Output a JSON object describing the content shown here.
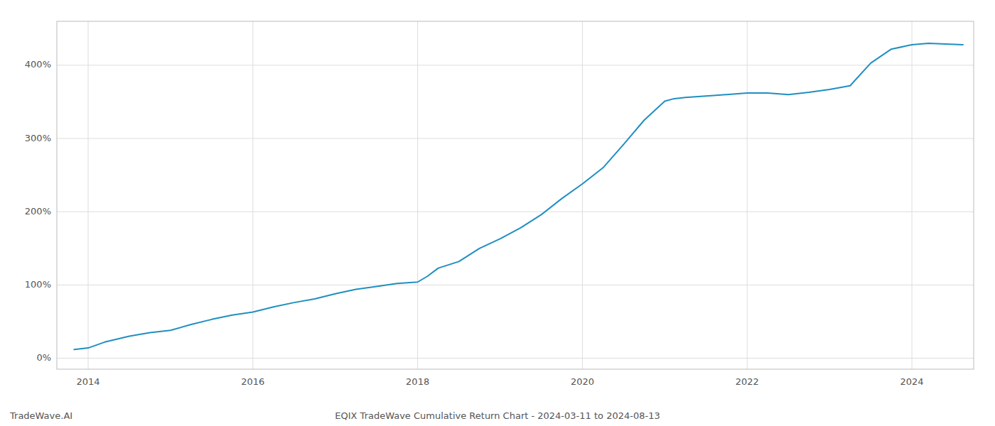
{
  "chart_data": {
    "type": "line",
    "title": "EQIX TradeWave Cumulative Return Chart - 2024-03-11 to 2024-08-13",
    "annotations": [
      "TradeWave.AI"
    ],
    "color": "#1f8fc1",
    "grid": true,
    "xlim": [
      2013.62,
      2024.75
    ],
    "ylim": [
      -15,
      460
    ],
    "xticks": [
      2014,
      2016,
      2018,
      2020,
      2022,
      2024
    ],
    "yticks": [
      {
        "value": 0,
        "label": "0%"
      },
      {
        "value": 100,
        "label": "100%"
      },
      {
        "value": 200,
        "label": "200%"
      },
      {
        "value": 300,
        "label": "300%"
      },
      {
        "value": 400,
        "label": "400%"
      }
    ],
    "x": [
      2013.83,
      2014.0,
      2014.2,
      2014.5,
      2014.75,
      2015.0,
      2015.25,
      2015.5,
      2015.75,
      2016.0,
      2016.25,
      2016.5,
      2016.75,
      2017.0,
      2017.25,
      2017.5,
      2017.75,
      2018.0,
      2018.12,
      2018.25,
      2018.5,
      2018.75,
      2019.0,
      2019.25,
      2019.5,
      2019.75,
      2020.0,
      2020.25,
      2020.5,
      2020.75,
      2021.0,
      2021.1,
      2021.25,
      2021.5,
      2021.75,
      2022.0,
      2022.25,
      2022.5,
      2022.75,
      2023.0,
      2023.25,
      2023.5,
      2023.75,
      2024.0,
      2024.2,
      2024.62
    ],
    "values": [
      12,
      14,
      22,
      30,
      35,
      38,
      46,
      53,
      59,
      63,
      70,
      76,
      81,
      88,
      94,
      98,
      102,
      104,
      112,
      123,
      132,
      150,
      163,
      178,
      196,
      218,
      238,
      260,
      292,
      325,
      351,
      354,
      356,
      358,
      360,
      362,
      362,
      360,
      363,
      367,
      372,
      403,
      422,
      428,
      430,
      428
    ]
  }
}
